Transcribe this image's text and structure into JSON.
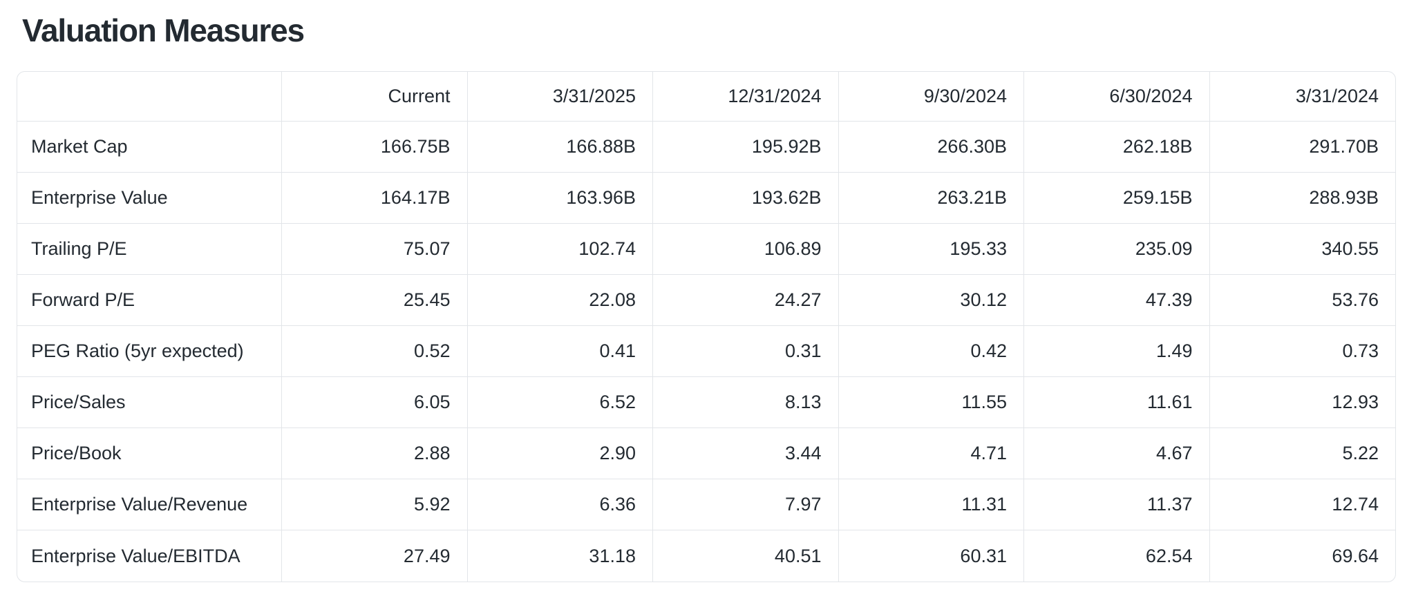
{
  "page": {
    "title": "Valuation Measures"
  },
  "colors": {
    "text": "#232a31",
    "border": "#e2e5e9",
    "background": "#ffffff"
  },
  "table": {
    "columns": [
      "",
      "Current",
      "3/31/2025",
      "12/31/2024",
      "9/30/2024",
      "6/30/2024",
      "3/31/2024"
    ],
    "rows": [
      {
        "label": "Market Cap",
        "values": [
          "166.75B",
          "166.88B",
          "195.92B",
          "266.30B",
          "262.18B",
          "291.70B"
        ]
      },
      {
        "label": "Enterprise Value",
        "values": [
          "164.17B",
          "163.96B",
          "193.62B",
          "263.21B",
          "259.15B",
          "288.93B"
        ]
      },
      {
        "label": "Trailing P/E",
        "values": [
          "75.07",
          "102.74",
          "106.89",
          "195.33",
          "235.09",
          "340.55"
        ]
      },
      {
        "label": "Forward P/E",
        "values": [
          "25.45",
          "22.08",
          "24.27",
          "30.12",
          "47.39",
          "53.76"
        ]
      },
      {
        "label": "PEG Ratio (5yr expected)",
        "values": [
          "0.52",
          "0.41",
          "0.31",
          "0.42",
          "1.49",
          "0.73"
        ]
      },
      {
        "label": "Price/Sales",
        "values": [
          "6.05",
          "6.52",
          "8.13",
          "11.55",
          "11.61",
          "12.93"
        ]
      },
      {
        "label": "Price/Book",
        "values": [
          "2.88",
          "2.90",
          "3.44",
          "4.71",
          "4.67",
          "5.22"
        ]
      },
      {
        "label": "Enterprise Value/Revenue",
        "values": [
          "5.92",
          "6.36",
          "7.97",
          "11.31",
          "11.37",
          "12.74"
        ]
      },
      {
        "label": "Enterprise Value/EBITDA",
        "values": [
          "27.49",
          "31.18",
          "40.51",
          "60.31",
          "62.54",
          "69.64"
        ]
      }
    ]
  }
}
